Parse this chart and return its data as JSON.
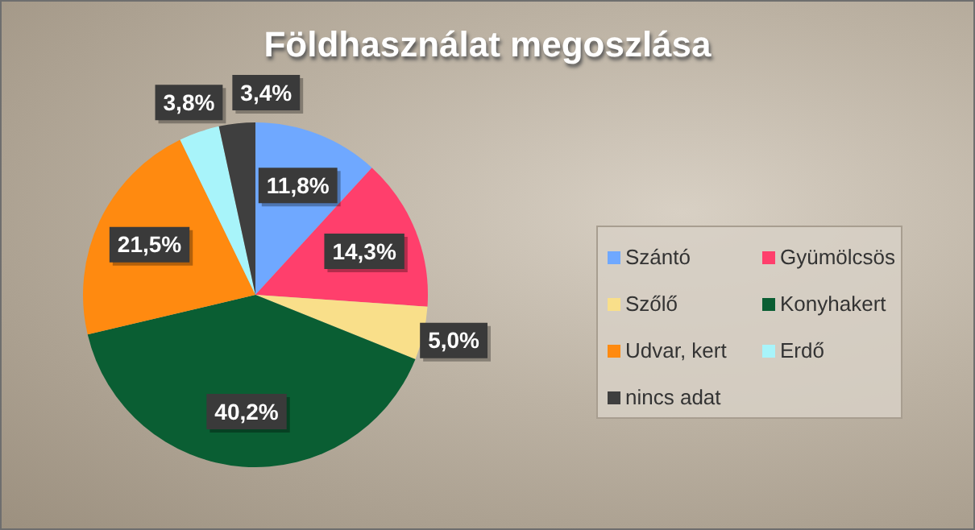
{
  "chart_data": {
    "type": "pie",
    "title": "Földhasználat megoszlása",
    "categories": [
      "Szántó",
      "Gyümölcsös",
      "Szőlő",
      "Konyhakert",
      "Udvar, kert",
      "Erdő",
      "nincs adat"
    ],
    "values": [
      11.8,
      14.3,
      5.0,
      40.2,
      21.5,
      3.8,
      3.4
    ],
    "colors": [
      "#6fa8ff",
      "#ff3f6c",
      "#f9df8a",
      "#0a5e33",
      "#ff8a10",
      "#a8f4fa",
      "#3f3f3f"
    ],
    "value_labels": [
      "11,8%",
      "14,3%",
      "5,0%",
      "40,2%",
      "21,5%",
      "3,8%",
      "3,4%"
    ],
    "legend": "right"
  }
}
